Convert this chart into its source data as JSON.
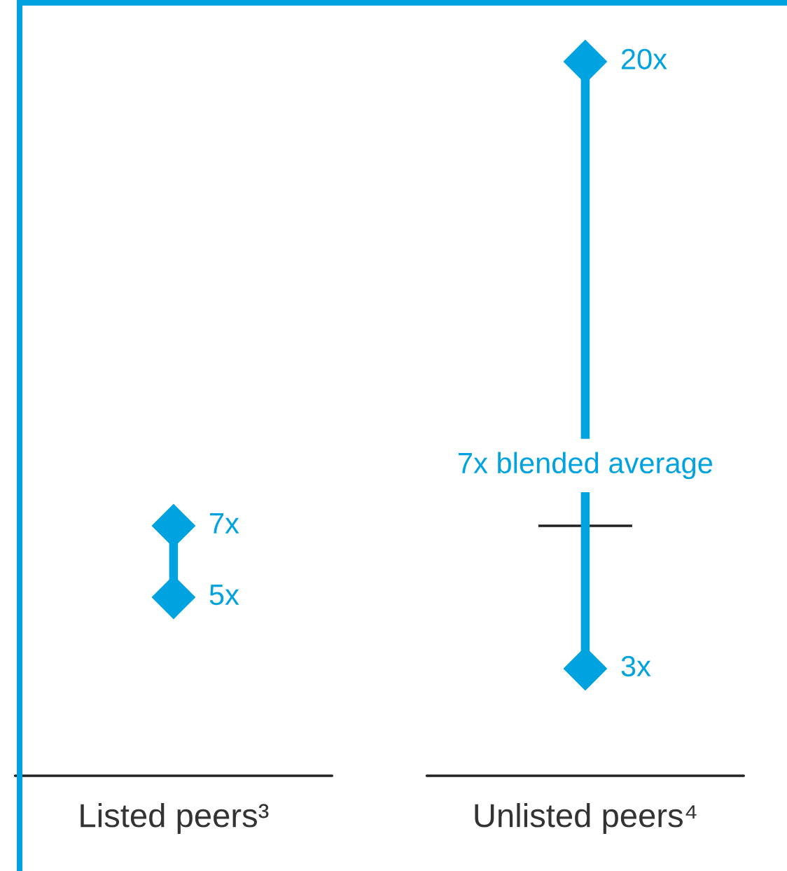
{
  "chart_data": {
    "type": "line",
    "categories": [
      "Listed peers³",
      "Unlisted peers⁴"
    ],
    "tick_labels": "x",
    "grid": false,
    "legend": false,
    "marker": "diamond",
    "series": [
      {
        "color": "#00a3e0",
        "x": [
          "Listed peers³",
          "Listed peers³"
        ],
        "values": [
          7,
          5
        ],
        "value_labels": [
          "7x",
          "5x"
        ]
      },
      {
        "color": "#00a3e0",
        "x": [
          "Unlisted peers⁴",
          "Unlisted peers⁴"
        ],
        "values": [
          20,
          3
        ],
        "value_labels": [
          "20x",
          "3x"
        ]
      }
    ],
    "ref_lines": [
      {
        "axis": "y",
        "value": 7,
        "label": "7x blended average",
        "color": "#222222"
      }
    ]
  }
}
